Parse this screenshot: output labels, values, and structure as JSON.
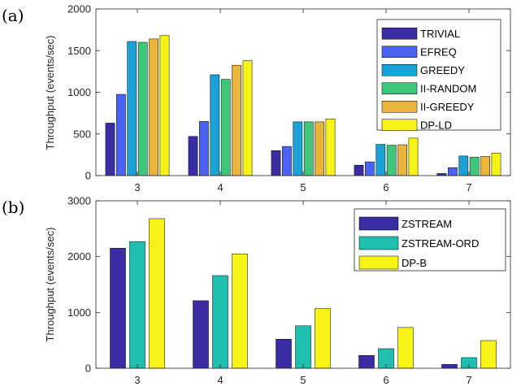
{
  "chart_data": [
    {
      "panel_label": "(a)",
      "type": "bar",
      "ylabel": "Throughput (events/sec)",
      "xlabel": "",
      "ylim": [
        0,
        2000
      ],
      "yticks": [
        0,
        500,
        1000,
        1500,
        2000
      ],
      "categories": [
        "3",
        "4",
        "5",
        "6",
        "7"
      ],
      "legend_position": "top-right",
      "series": [
        {
          "name": "TRIVIAL",
          "color": "#3a2ca3",
          "values": [
            630,
            470,
            300,
            125,
            25
          ]
        },
        {
          "name": "EFREQ",
          "color": "#4a63f2",
          "values": [
            975,
            650,
            350,
            165,
            95
          ]
        },
        {
          "name": "GREEDY",
          "color": "#1aa1d8",
          "values": [
            1610,
            1210,
            645,
            375,
            235
          ]
        },
        {
          "name": "II-RANDOM",
          "color": "#3ec77a",
          "values": [
            1600,
            1155,
            645,
            365,
            220
          ]
        },
        {
          "name": "II-GREEDY",
          "color": "#eab53c",
          "values": [
            1640,
            1325,
            645,
            370,
            230
          ]
        },
        {
          "name": "DP-LD",
          "color": "#f7f316",
          "values": [
            1680,
            1380,
            680,
            450,
            270
          ]
        }
      ]
    },
    {
      "panel_label": "(b)",
      "type": "bar",
      "ylabel": "Throughput (events/sec)",
      "xlabel": "",
      "ylim": [
        0,
        3000
      ],
      "yticks": [
        0,
        1000,
        2000,
        3000
      ],
      "categories": [
        "3",
        "4",
        "5",
        "6",
        "7"
      ],
      "legend_position": "top-right",
      "series": [
        {
          "name": "ZSTREAM",
          "color": "#3a2ca3",
          "values": [
            2150,
            1210,
            520,
            230,
            70
          ]
        },
        {
          "name": "ZSTREAM-ORD",
          "color": "#1fbfb0",
          "values": [
            2270,
            1660,
            760,
            350,
            190
          ]
        },
        {
          "name": "DP-B",
          "color": "#f7f316",
          "values": [
            2680,
            2050,
            1070,
            730,
            495
          ]
        }
      ]
    }
  ]
}
